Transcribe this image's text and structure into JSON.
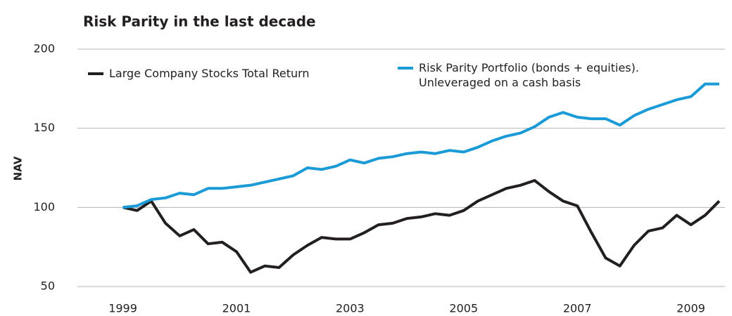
{
  "chart_data": {
    "type": "line",
    "title": "Risk Parity in the last decade",
    "y_label": "NAV",
    "x": [
      1999.0,
      1999.25,
      1999.5,
      1999.75,
      2000.0,
      2000.25,
      2000.5,
      2000.75,
      2001.0,
      2001.25,
      2001.5,
      2001.75,
      2002.0,
      2002.25,
      2002.5,
      2002.75,
      2003.0,
      2003.25,
      2003.5,
      2003.75,
      2004.0,
      2004.25,
      2004.5,
      2004.75,
      2005.0,
      2005.25,
      2005.5,
      2005.75,
      2006.0,
      2006.25,
      2006.5,
      2006.75,
      2007.0,
      2007.25,
      2007.5,
      2007.75,
      2008.0,
      2008.25,
      2008.5,
      2008.75,
      2009.0,
      2009.25,
      2009.5
    ],
    "series": [
      {
        "name": "Large Company Stocks Total Return",
        "color": "#231f20",
        "values": [
          100,
          98,
          104,
          90,
          82,
          86,
          77,
          78,
          72,
          59,
          63,
          62,
          70,
          76,
          81,
          80,
          80,
          84,
          89,
          90,
          93,
          94,
          96,
          95,
          98,
          104,
          108,
          112,
          114,
          117,
          110,
          104,
          101,
          84,
          68,
          63,
          76,
          85,
          87,
          95,
          89,
          95,
          104
        ]
      },
      {
        "name": "Risk Parity Portfolio (bonds + equities). Unleveraged on a cash basis",
        "color": "#1a9ad6",
        "values": [
          100,
          101,
          105,
          106,
          109,
          108,
          112,
          112,
          113,
          114,
          116,
          118,
          120,
          125,
          124,
          126,
          130,
          128,
          131,
          132,
          134,
          135,
          134,
          136,
          135,
          138,
          142,
          145,
          147,
          151,
          157,
          160,
          157,
          156,
          156,
          152,
          158,
          162,
          165,
          168,
          170,
          178,
          178
        ]
      }
    ],
    "xlim": [
      1998.2,
      2009.6
    ],
    "xticks": [
      1999,
      2001,
      2003,
      2005,
      2007,
      2009
    ],
    "ylim": [
      50,
      200
    ],
    "yticks": [
      50,
      100,
      150,
      200
    ],
    "grid": true
  }
}
